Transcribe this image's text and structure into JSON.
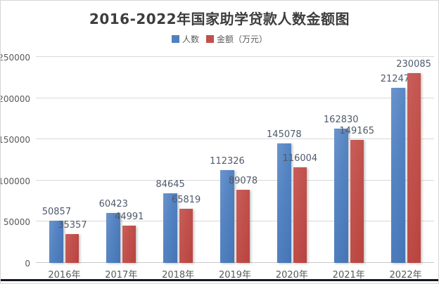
{
  "chart_data": {
    "type": "bar",
    "title": "2016-2022年国家助学贷款人数金额图",
    "categories": [
      "2016年",
      "2017年",
      "2018年",
      "2019年",
      "2020年",
      "2021年",
      "2022年"
    ],
    "series": [
      {
        "name": "人数",
        "color": "#4f81bd",
        "values": [
          50857,
          60423,
          84645,
          112326,
          145078,
          162830,
          212470
        ]
      },
      {
        "name": "金额（万元）",
        "color": "#c0504d",
        "values": [
          35357,
          44991,
          65819,
          89078,
          116004,
          149165,
          230085
        ]
      }
    ],
    "ylim": [
      0,
      250000
    ],
    "yticks": [
      0,
      50000,
      100000,
      150000,
      200000,
      250000
    ],
    "grid": true,
    "legend_position": "top",
    "data_labels": true,
    "colors": {
      "title_text": "#3d3d3d",
      "axis_text": "#595959",
      "label_text": "#4e5a6b",
      "gridline": "#d9d9d9"
    }
  }
}
